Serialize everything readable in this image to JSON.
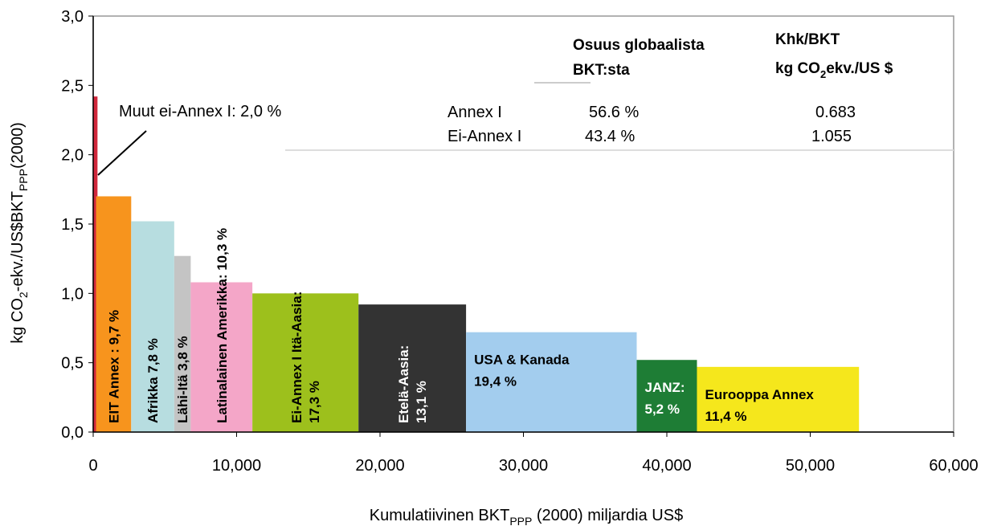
{
  "chart_data": {
    "type": "variable-width-bar",
    "xlabel": [
      "Kumulatiivinen BKT",
      "PPP",
      " (2000) miljardia US$"
    ],
    "ylabel": [
      "kg CO",
      "2",
      "-ekv./US$BKT",
      "PPP",
      "(2000)"
    ],
    "xlim": [
      0,
      60000
    ],
    "xticks": [
      0,
      {
        "value": 10000,
        "label": "10,000"
      },
      {
        "value": 20000,
        "label": "20,000"
      },
      {
        "value": 30000,
        "label": "30,000"
      },
      {
        "value": 40000,
        "label": "40,000"
      },
      {
        "value": 50000,
        "label": "50,000"
      },
      {
        "value": 60000,
        "label": "60,000"
      }
    ],
    "ylim": [
      0,
      3
    ],
    "yticks": [
      {
        "value": 0,
        "label": "0,0"
      },
      {
        "value": 0.5,
        "label": "0,5"
      },
      {
        "value": 1,
        "label": "1,0"
      },
      {
        "value": 1.5,
        "label": "1,5"
      },
      {
        "value": 2,
        "label": "2,0"
      },
      {
        "value": 2.5,
        "label": "2,5"
      },
      {
        "value": 3,
        "label": "3,0"
      }
    ],
    "bars": [
      {
        "x": [
          0,
          300
        ],
        "value": 2.42,
        "color": "#d0283c",
        "label": [],
        "label_rotated": false
      },
      {
        "x": [
          200,
          2650
        ],
        "value": 1.7,
        "color": "#f7941d",
        "label": [
          "EIT Annex : 9,7 %"
        ],
        "label_rotated": true
      },
      {
        "x": [
          2650,
          5650
        ],
        "value": 1.52,
        "color": "#b7dde0",
        "label": [
          "Afrikka 7,8 %"
        ],
        "label_rotated": true
      },
      {
        "x": [
          5650,
          6800
        ],
        "value": 1.27,
        "color": "#c4c4c4",
        "label": [
          "Lähi-Itä 3,8 %"
        ],
        "label_rotated": true
      },
      {
        "x": [
          6800,
          11100
        ],
        "value": 1.08,
        "color": "#f4a6c8",
        "label": [
          "Latinalainen Amerikka: 10,3 %"
        ],
        "label_rotated": true
      },
      {
        "x": [
          11100,
          18500
        ],
        "value": 1.0,
        "color": "#9dc01c",
        "label": [
          "Ei-Annex I Itä-Aasia:",
          "17,3 %"
        ],
        "label_rotated": true
      },
      {
        "x": [
          18500,
          26000
        ],
        "value": 0.92,
        "color": "#333333",
        "label": [
          "Etelä-Aasia:",
          "13,1 %"
        ],
        "label_rotated": true
      },
      {
        "x": [
          26000,
          37900
        ],
        "value": 0.72,
        "color": "#a3cdee",
        "label": [
          "USA & Kanada",
          "19,4 %"
        ],
        "label_rotated": false
      },
      {
        "x": [
          37900,
          42100
        ],
        "value": 0.52,
        "color": "#1e7d35",
        "label": [
          "JANZ:",
          "5,2 %"
        ],
        "label_rotated": false
      },
      {
        "x": [
          42100,
          53400
        ],
        "value": 0.47,
        "color": "#f5e71c",
        "label": [
          "Eurooppa Annex",
          "11,4 %"
        ],
        "label_rotated": false
      }
    ],
    "annotation": "Muut ei-Annex I: 2,0 %",
    "table": {
      "header1": [
        "Osuus globaalista",
        "BKT:sta"
      ],
      "header2": [
        "Khk/BKT",
        "kg CO",
        "2",
        "ekv./US $"
      ],
      "rows": [
        [
          "Annex I",
          "56.6 %",
          "0.683"
        ],
        [
          "Ei-Annex I",
          "43.4 %",
          "1.055"
        ]
      ]
    }
  }
}
